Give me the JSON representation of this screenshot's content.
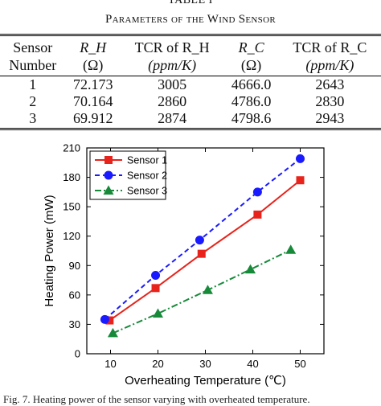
{
  "table": {
    "title": "TABLE I",
    "caption": "Parameters of the Wind Sensor",
    "headers": [
      {
        "line1": "Sensor",
        "line2": "Number"
      },
      {
        "line1": "R_H",
        "line2": "(Ω)"
      },
      {
        "line1": "TCR of R_H",
        "line2": "(ppm/K)"
      },
      {
        "line1": "R_C",
        "line2": "(Ω)"
      },
      {
        "line1": "TCR of R_C",
        "line2": "(ppm/K)"
      }
    ],
    "rows": [
      [
        "1",
        "72.173",
        "3005",
        "4666.0",
        "2643"
      ],
      [
        "2",
        "70.164",
        "2860",
        "4786.0",
        "2830"
      ],
      [
        "3",
        "69.912",
        "2874",
        "4798.6",
        "2943"
      ]
    ]
  },
  "chart_data": {
    "type": "line",
    "xlabel": "Overheating Temperature (℃)",
    "ylabel": "Heating Power (mW)",
    "xlim": [
      5,
      55
    ],
    "ylim": [
      0,
      210
    ],
    "xticks": [
      10,
      20,
      30,
      40,
      50
    ],
    "yticks": [
      0,
      30,
      60,
      90,
      120,
      150,
      180,
      210
    ],
    "grid": false,
    "legend": "top-left",
    "series": [
      {
        "name": "Sensor 1",
        "color": "#e8231b",
        "marker": "square",
        "dash": "solid",
        "x": [
          9.8,
          19.5,
          29.2,
          41.0,
          50.0
        ],
        "y": [
          34,
          67,
          102,
          142,
          177
        ]
      },
      {
        "name": "Sensor 2",
        "color": "#1a1aff",
        "marker": "circle",
        "dash": "dashed",
        "x": [
          8.8,
          19.5,
          28.8,
          41.0,
          50.0
        ],
        "y": [
          35,
          80,
          116,
          165,
          199
        ]
      },
      {
        "name": "Sensor 3",
        "color": "#178a3a",
        "marker": "triangle",
        "dash": "dashdot",
        "x": [
          10.5,
          20.0,
          30.5,
          39.5,
          48.0
        ],
        "y": [
          21,
          41,
          65,
          86,
          106
        ]
      }
    ]
  },
  "figure": {
    "caption": "Fig. 7.   Heating power of the sensor varying with overheated temperature."
  }
}
